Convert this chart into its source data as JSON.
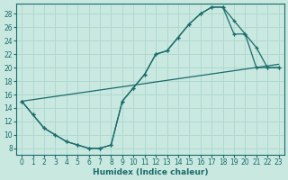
{
  "xlabel": "Humidex (Indice chaleur)",
  "xlim": [
    -0.5,
    23.5
  ],
  "ylim": [
    7,
    29.5
  ],
  "xticks": [
    0,
    1,
    2,
    3,
    4,
    5,
    6,
    7,
    8,
    9,
    10,
    11,
    12,
    13,
    14,
    15,
    16,
    17,
    18,
    19,
    20,
    21,
    22,
    23
  ],
  "yticks": [
    8,
    10,
    12,
    14,
    16,
    18,
    20,
    22,
    24,
    26,
    28
  ],
  "bg_color": "#c8e8e0",
  "line_color": "#1a6b6b",
  "grid_color": "#b0d8d0",
  "line1_x": [
    0,
    1,
    2,
    3,
    4,
    5,
    6,
    7,
    8,
    9,
    10,
    11,
    12,
    13,
    14,
    15,
    16,
    17,
    18,
    19,
    20,
    21,
    22,
    23
  ],
  "line1_y": [
    15,
    13,
    11,
    10,
    9,
    8.5,
    8,
    8,
    8.5,
    15,
    17,
    19,
    22,
    22.5,
    24.5,
    26.5,
    28,
    29,
    29,
    25,
    25,
    20,
    20,
    20
  ],
  "line2_x": [
    0,
    1,
    2,
    3,
    4,
    5,
    6,
    7,
    8,
    9,
    10,
    11,
    12,
    13,
    14,
    15,
    16,
    17,
    18,
    19,
    20,
    21,
    22,
    23
  ],
  "line2_y": [
    15,
    13,
    11,
    10,
    9,
    8.5,
    8,
    8,
    8.5,
    15,
    17,
    19,
    22,
    22.5,
    24.5,
    26.5,
    28,
    29,
    29,
    27,
    25,
    23,
    20,
    20
  ],
  "line3_x": [
    0,
    23
  ],
  "line3_y": [
    15,
    20.5
  ]
}
